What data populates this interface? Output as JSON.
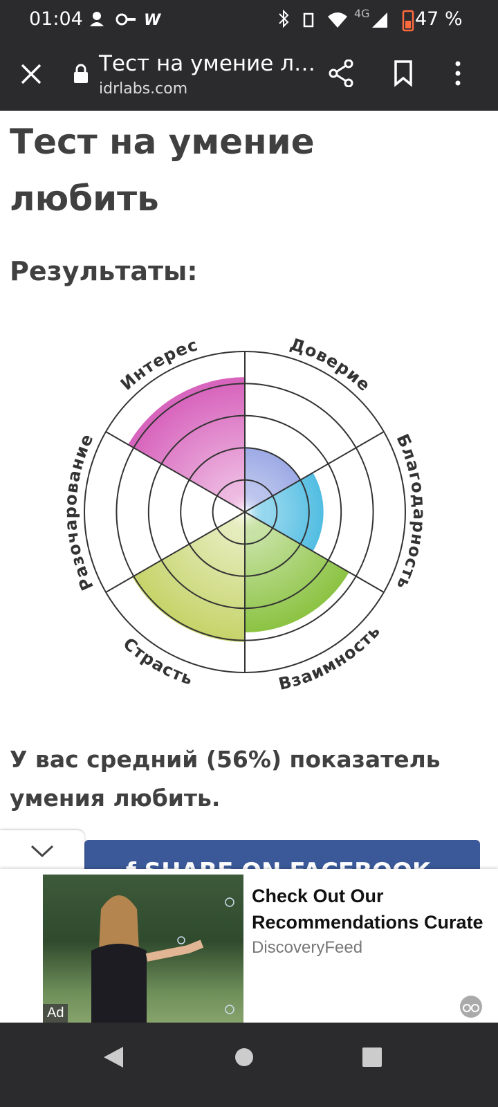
{
  "status_bar": {
    "time": "01:04",
    "network": "4G",
    "battery": "47 %"
  },
  "browser_bar": {
    "title": "Тест на умение л…",
    "url": "idrlabs.com"
  },
  "page": {
    "title": "Тест на умение любить",
    "subtitle": "Результаты:",
    "result_text": "У вас средний (56%) показатель умения любить.",
    "share_button": "f SHARE ON FACEBOOK"
  },
  "chart_data": {
    "type": "polar",
    "categories": [
      "Доверие",
      "Благодарность",
      "Взаимность",
      "Страсть",
      "Разочарование",
      "Интерес"
    ],
    "values": [
      40,
      49,
      75,
      81,
      3,
      84
    ],
    "colors": [
      "#6a7ed8",
      "#14a6d8",
      "#86c03a",
      "#c6d46a",
      "#e8742c",
      "#d865bd"
    ],
    "rlim": [
      0,
      100
    ],
    "rticks": [
      20,
      40,
      60,
      80,
      100
    ],
    "grid": true
  },
  "ad": {
    "headline": "Check Out Our Recommendations Curate",
    "source": "DiscoveryFeed",
    "badge": "Ad"
  }
}
